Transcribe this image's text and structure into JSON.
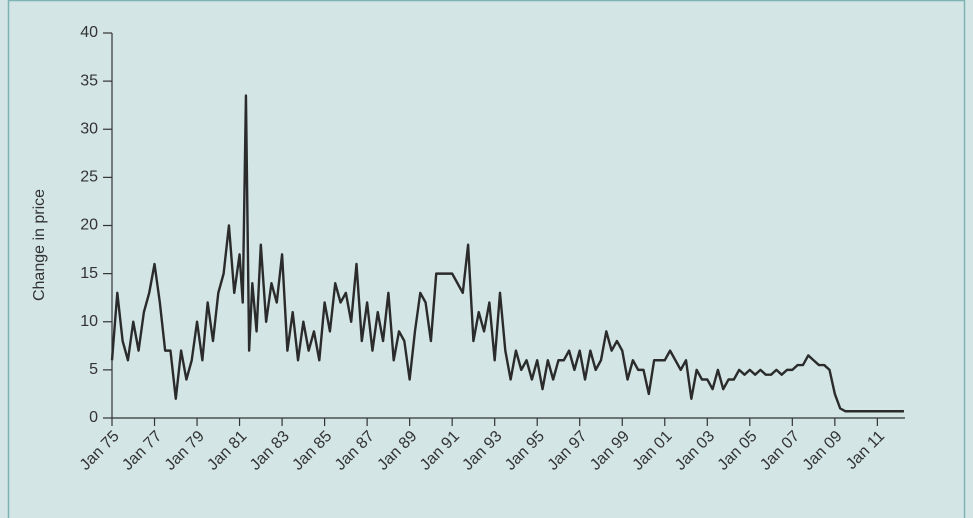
{
  "chart_data": {
    "type": "line",
    "y_label": "Change in price",
    "x": [
      1975,
      1975.25,
      1975.5,
      1975.75,
      1976,
      1976.25,
      1976.5,
      1976.75,
      1977,
      1977.25,
      1977.5,
      1977.75,
      1978,
      1978.25,
      1978.5,
      1978.75,
      1979,
      1979.25,
      1979.5,
      1979.75,
      1980,
      1980.25,
      1980.5,
      1980.75,
      1981,
      1981.15,
      1981.3,
      1981.45,
      1981.6,
      1981.8,
      1982,
      1982.25,
      1982.5,
      1982.75,
      1983,
      1983.25,
      1983.5,
      1983.75,
      1984,
      1984.25,
      1984.5,
      1984.75,
      1985,
      1985.25,
      1985.5,
      1985.75,
      1986,
      1986.25,
      1986.5,
      1986.75,
      1987,
      1987.25,
      1987.5,
      1987.75,
      1988,
      1988.25,
      1988.5,
      1988.75,
      1989,
      1989.25,
      1989.5,
      1989.75,
      1990,
      1990.25,
      1990.5,
      1990.75,
      1991,
      1991.25,
      1991.5,
      1991.75,
      1992,
      1992.25,
      1992.5,
      1992.75,
      1993,
      1993.25,
      1993.5,
      1993.75,
      1994,
      1994.25,
      1994.5,
      1994.75,
      1995,
      1995.25,
      1995.5,
      1995.75,
      1996,
      1996.25,
      1996.5,
      1996.75,
      1997,
      1997.25,
      1997.5,
      1997.75,
      1998,
      1998.25,
      1998.5,
      1998.75,
      1999,
      1999.25,
      1999.5,
      1999.75,
      2000,
      2000.25,
      2000.5,
      2000.75,
      2001,
      2001.25,
      2001.5,
      2001.75,
      2002,
      2002.25,
      2002.5,
      2002.75,
      2003,
      2003.25,
      2003.5,
      2003.75,
      2004,
      2004.25,
      2004.5,
      2004.75,
      2005,
      2005.25,
      2005.5,
      2005.75,
      2006,
      2006.25,
      2006.5,
      2006.75,
      2007,
      2007.25,
      2007.5,
      2007.75,
      2008,
      2008.25,
      2008.5,
      2008.75,
      2009,
      2009.25,
      2009.5,
      2009.75,
      2010,
      2010.25,
      2010.5,
      2010.75,
      2011,
      2011.25,
      2011.5,
      2011.75,
      2012,
      2012.25
    ],
    "values": [
      6,
      13,
      8,
      6,
      10,
      7,
      11,
      13,
      16,
      12,
      7,
      7,
      2,
      7,
      4,
      6,
      10,
      6,
      12,
      8,
      13,
      15,
      20,
      13,
      17,
      12,
      33.5,
      7,
      14,
      9,
      18,
      10,
      14,
      12,
      17,
      7,
      11,
      6,
      10,
      7,
      9,
      6,
      12,
      9,
      14,
      12,
      13,
      10,
      16,
      8,
      12,
      7,
      11,
      8,
      13,
      6,
      9,
      8,
      4,
      9,
      13,
      12,
      8,
      15,
      15,
      15,
      15,
      14,
      13,
      18,
      8,
      11,
      9,
      12,
      6,
      13,
      7,
      4,
      7,
      5,
      6,
      4,
      6,
      3,
      6,
      4,
      6,
      6,
      7,
      5,
      7,
      4,
      7,
      5,
      6,
      9,
      7,
      8,
      7,
      4,
      6,
      5,
      5,
      2.5,
      6,
      6,
      6,
      7,
      6,
      5,
      6,
      2,
      5,
      4,
      4,
      3,
      5,
      3,
      4,
      4,
      5,
      4.5,
      5,
      4.5,
      5,
      4.5,
      4.5,
      5,
      4.5,
      5,
      5,
      5.5,
      5.5,
      6.5,
      6,
      5.5,
      5.5,
      5,
      2.5,
      1,
      0.7,
      0.7,
      0.7,
      0.7,
      0.7,
      0.7,
      0.7,
      0.7,
      0.7,
      0.7,
      0.7,
      0.7
    ],
    "color": "#2b2b2b",
    "xlim": [
      1975,
      2012.3
    ],
    "xticks": [
      {
        "value": 1975,
        "label": "Jan 75"
      },
      {
        "value": 1977,
        "label": "Jan 77"
      },
      {
        "value": 1979,
        "label": "Jan 79"
      },
      {
        "value": 1981,
        "label": "Jan 81"
      },
      {
        "value": 1983,
        "label": "Jan 83"
      },
      {
        "value": 1985,
        "label": "Jan 85"
      },
      {
        "value": 1987,
        "label": "Jan 87"
      },
      {
        "value": 1989,
        "label": "Jan 89"
      },
      {
        "value": 1991,
        "label": "Jan 91"
      },
      {
        "value": 1993,
        "label": "Jan 93"
      },
      {
        "value": 1995,
        "label": "Jan 95"
      },
      {
        "value": 1997,
        "label": "Jan 97"
      },
      {
        "value": 1999,
        "label": "Jan 99"
      },
      {
        "value": 2001,
        "label": "Jan 01"
      },
      {
        "value": 2003,
        "label": "Jan 03"
      },
      {
        "value": 2005,
        "label": "Jan 05"
      },
      {
        "value": 2007,
        "label": "Jan 07"
      },
      {
        "value": 2009,
        "label": "Jan 09"
      },
      {
        "value": 2011,
        "label": "Jan 11"
      }
    ],
    "ylim": [
      0,
      40
    ],
    "yticks": [
      0,
      5,
      10,
      15,
      20,
      25,
      30,
      35,
      40
    ],
    "grid": false
  }
}
